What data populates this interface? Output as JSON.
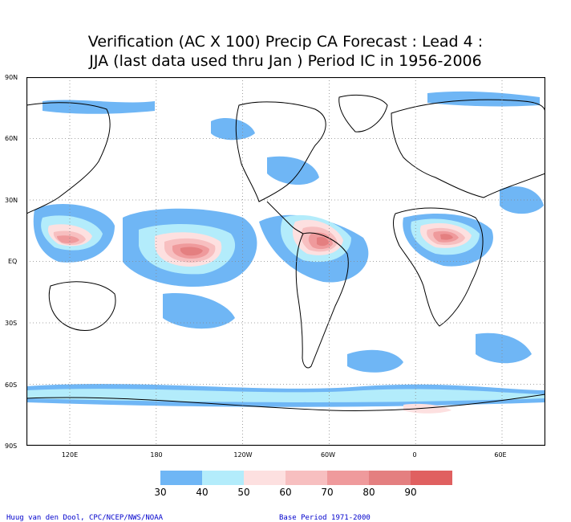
{
  "title": {
    "line1": "Verification (AC X 100) Precip CA Forecast : Lead 4 :",
    "line2": "JJA (last data used thru Jan ) Period IC in 1956-2006"
  },
  "axes": {
    "lat_labels": [
      "90N",
      "60N",
      "30N",
      "EQ",
      "30S",
      "60S",
      "90S"
    ],
    "lon_labels": [
      "120E",
      "180",
      "120W",
      "60W",
      "0",
      "60E"
    ]
  },
  "legend": {
    "thresholds": [
      "30",
      "40",
      "50",
      "60",
      "70",
      "80",
      "90"
    ],
    "colors": [
      "#6fb6f5",
      "#b3ecfb",
      "#fde0e0",
      "#f7bfc0",
      "#ef9a9c",
      "#e47f80",
      "#e06060"
    ]
  },
  "credits": {
    "left": "Huug van den Dool, CPC/NCEP/NWS/NOAA",
    "right": "Base Period 1971-2000"
  }
}
